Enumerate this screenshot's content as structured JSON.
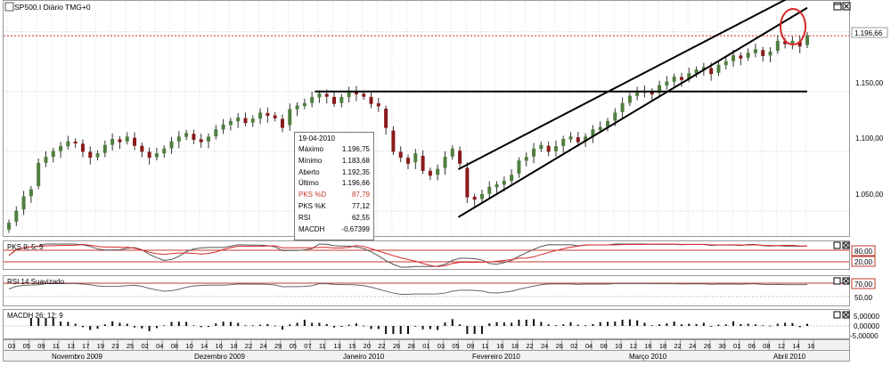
{
  "window": {
    "title": "SP500.I Diário TMG+0"
  },
  "price_axis": {
    "last_label": "1.196,66",
    "ticks": [
      "1.150,00",
      "1.100,00",
      "1.050,00"
    ]
  },
  "info_box": {
    "date": "19-04-2010",
    "rows": [
      {
        "label": "Máximo",
        "value": "1.196,75",
        "red": false
      },
      {
        "label": "Mínimo",
        "value": "1.183,68",
        "red": false
      },
      {
        "label": "Aberto",
        "value": "1.192,35",
        "red": false
      },
      {
        "label": "Último",
        "value": "1.196,66",
        "red": false
      },
      {
        "label": "PKS %D",
        "value": "87,79",
        "red": true
      },
      {
        "label": "PKS %K",
        "value": "77,12",
        "red": false
      },
      {
        "label": "RSI",
        "value": "62,55",
        "red": false
      },
      {
        "label": "MACDH",
        "value": "-0,67399",
        "red": false
      }
    ]
  },
  "panels": {
    "stoch": {
      "title": "PKS 9; 5; 5",
      "levels": [
        "80,00",
        "20,00"
      ]
    },
    "rsi": {
      "title": "RSI 14 Suavizado",
      "levels": [
        "70,00",
        "50,00"
      ]
    },
    "macd": {
      "title": "MACDH 26; 12; 9",
      "levels": [
        "5,00000",
        "0,00000",
        "-5,00000"
      ]
    }
  },
  "x_axis": {
    "days": [
      "03",
      "05",
      "09",
      "11",
      "13",
      "17",
      "19",
      "23",
      "25",
      "02",
      "04",
      "08",
      "10",
      "14",
      "16",
      "18",
      "22",
      "24",
      "29",
      "05",
      "07",
      "11",
      "13",
      "15",
      "20",
      "22",
      "26",
      "28",
      "01",
      "03",
      "05",
      "09",
      "11",
      "16",
      "18",
      "22",
      "24",
      "26",
      "02",
      "04",
      "08",
      "10",
      "12",
      "16",
      "18",
      "22",
      "24",
      "26",
      "30",
      "01",
      "06",
      "08",
      "12",
      "14",
      "16"
    ],
    "months": [
      "Novembro 2009",
      "Dezembro 2009",
      "Janeiro 2010",
      "Fevereiro 2010",
      "Março 2010",
      "Abril 2010"
    ]
  },
  "colors": {
    "up_candle": "#4f7f3f",
    "down_candle": "#8b1a1a",
    "last_price_line": "#d62728",
    "highlight_circle": "#d62728",
    "stoch_k": "#555555",
    "stoch_d": "#d62728"
  },
  "chart_data": {
    "type": "candlestick",
    "title": "SP500.I Diário TMG+0",
    "x_range": [
      "2009-11-03",
      "2010-04-19"
    ],
    "ylim": [
      1030,
      1225
    ],
    "last_price": 1196.66,
    "close_approx": [
      1040,
      1050,
      1062,
      1068,
      1090,
      1095,
      1100,
      1104,
      1108,
      1107,
      1100,
      1095,
      1098,
      1105,
      1110,
      1108,
      1112,
      1105,
      1100,
      1095,
      1098,
      1102,
      1108,
      1112,
      1115,
      1110,
      1108,
      1112,
      1118,
      1122,
      1125,
      1128,
      1124,
      1127,
      1132,
      1130,
      1128,
      1120,
      1135,
      1138,
      1140,
      1145,
      1148,
      1146,
      1140,
      1145,
      1150,
      1148,
      1146,
      1140,
      1138,
      1120,
      1100,
      1095,
      1090,
      1098,
      1084,
      1080,
      1085,
      1095,
      1102,
      1090,
      1062,
      1060,
      1064,
      1070,
      1072,
      1075,
      1080,
      1092,
      1095,
      1102,
      1105,
      1100,
      1104,
      1110,
      1112,
      1108,
      1112,
      1118,
      1120,
      1125,
      1132,
      1140,
      1146,
      1150,
      1150,
      1148,
      1155,
      1158,
      1162,
      1160,
      1165,
      1168,
      1170,
      1165,
      1172,
      1175,
      1180,
      1178,
      1182,
      1185,
      1180,
      1183,
      1192,
      1190,
      1192,
      1188,
      1196.66
    ],
    "trend_lines": [
      {
        "name": "resistance",
        "from": [
          "2010-01-06",
          1150
        ],
        "to": [
          "2010-04-19",
          1150
        ]
      },
      {
        "name": "channel_upper",
        "from": [
          "2010-02-05",
          1085
        ],
        "to": [
          "2010-04-16",
          1230
        ]
      },
      {
        "name": "channel_lower",
        "from": [
          "2010-02-05",
          1045
        ],
        "to": [
          "2010-04-19",
          1220
        ]
      }
    ],
    "indicators": {
      "PKS %D": 87.79,
      "PKS %K": 77.12,
      "RSI": 62.55,
      "MACDH": -0.67399
    }
  }
}
